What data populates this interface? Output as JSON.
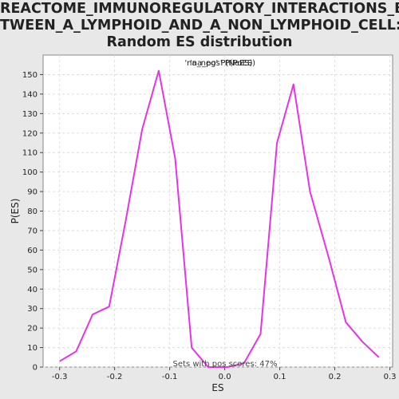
{
  "chart_data": {
    "type": "line",
    "title_lines": [
      "REACTOME_IMMUNOREGULATORY_INTERACTIONS_BE",
      "TWEEN_A_LYMPHOID_AND_A_NON_LYMPHOID_CELL:",
      "Random ES distribution"
    ],
    "xlabel": "ES",
    "ylabel": "P(ES)",
    "xlim": [
      -0.33,
      0.305
    ],
    "ylim": [
      0,
      160
    ],
    "xticks": [
      -0.3,
      -0.2,
      -0.1,
      0.0,
      0.1,
      0.2,
      0.3
    ],
    "xtick_labels": [
      "-0.3",
      "-0.2",
      "-0.1",
      "0.0",
      "0.1",
      "0.2",
      "0.3"
    ],
    "yticks": [
      0,
      10,
      20,
      30,
      40,
      50,
      60,
      70,
      80,
      90,
      100,
      110,
      120,
      130,
      140,
      150
    ],
    "yticks_labels": [
      "0",
      "10",
      "20",
      "30",
      "40",
      "50",
      "60",
      "70",
      "80",
      "90",
      "100",
      "110",
      "120",
      "130",
      "140",
      "150"
    ],
    "grid": true,
    "legend_text": "'na_neg' P(NeES)",
    "legend_text_overlay": "'na_pos' P(PoES)",
    "series": [
      {
        "color": "#e633e6",
        "x": [
          -0.3,
          -0.27,
          -0.24,
          -0.21,
          -0.18,
          -0.15,
          -0.12,
          -0.09,
          -0.06,
          -0.03,
          0.005,
          0.035,
          0.065,
          0.095,
          0.125,
          0.155,
          0.19,
          0.22,
          0.25,
          0.28
        ],
        "y": [
          3,
          8,
          27,
          31,
          75,
          122,
          152,
          107,
          10,
          0,
          0,
          2,
          17,
          115,
          145,
          90,
          55,
          23,
          13,
          5
        ]
      }
    ],
    "footer_note": "Sets with pos scores: 47%"
  },
  "colors": {
    "line": "#e633e6",
    "plot_bg": "#ffffff",
    "page_bg": "#e8e8e8",
    "grid": "#dddddd",
    "legend_neg": "#e8336e",
    "legend_pos": "#9933ee"
  }
}
